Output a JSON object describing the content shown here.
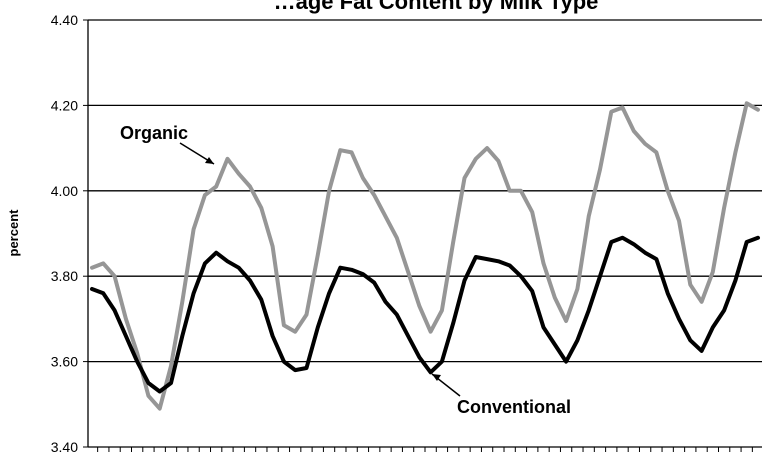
{
  "chart_data": {
    "type": "line",
    "title": "…age Fat Content by Milk Type",
    "xlabel": "",
    "ylabel": "percent",
    "ylim": [
      3.4,
      4.4
    ],
    "yticks": [
      "3.40",
      "3.60",
      "3.80",
      "4.00",
      "4.20",
      "4.40"
    ],
    "grid": true,
    "n_points": 60,
    "annotations": [
      "Organic",
      "Conventional"
    ],
    "series": [
      {
        "name": "Organic",
        "color": "#969696",
        "values": [
          3.82,
          3.83,
          3.8,
          3.7,
          3.62,
          3.52,
          3.49,
          3.59,
          3.74,
          3.91,
          3.99,
          4.01,
          4.075,
          4.04,
          4.01,
          3.96,
          3.87,
          3.685,
          3.67,
          3.71,
          3.85,
          4.0,
          4.095,
          4.09,
          4.03,
          3.99,
          3.94,
          3.89,
          3.81,
          3.73,
          3.67,
          3.72,
          3.88,
          4.03,
          4.075,
          4.1,
          4.07,
          4.0,
          4.0,
          3.95,
          3.83,
          3.75,
          3.695,
          3.77,
          3.94,
          4.05,
          4.185,
          4.195,
          4.14,
          4.11,
          4.09,
          4.0,
          3.93,
          3.78,
          3.74,
          3.81,
          3.96,
          4.09,
          4.205,
          4.19
        ]
      },
      {
        "name": "Conventional",
        "color": "#000000",
        "values": [
          3.77,
          3.76,
          3.72,
          3.66,
          3.6,
          3.55,
          3.53,
          3.55,
          3.66,
          3.76,
          3.83,
          3.855,
          3.835,
          3.82,
          3.79,
          3.745,
          3.66,
          3.6,
          3.58,
          3.585,
          3.68,
          3.76,
          3.82,
          3.815,
          3.805,
          3.785,
          3.74,
          3.71,
          3.66,
          3.61,
          3.575,
          3.6,
          3.69,
          3.79,
          3.845,
          3.84,
          3.835,
          3.825,
          3.8,
          3.765,
          3.68,
          3.64,
          3.6,
          3.65,
          3.72,
          3.8,
          3.88,
          3.89,
          3.875,
          3.855,
          3.84,
          3.76,
          3.7,
          3.65,
          3.625,
          3.68,
          3.72,
          3.79,
          3.88,
          3.89
        ]
      }
    ]
  }
}
